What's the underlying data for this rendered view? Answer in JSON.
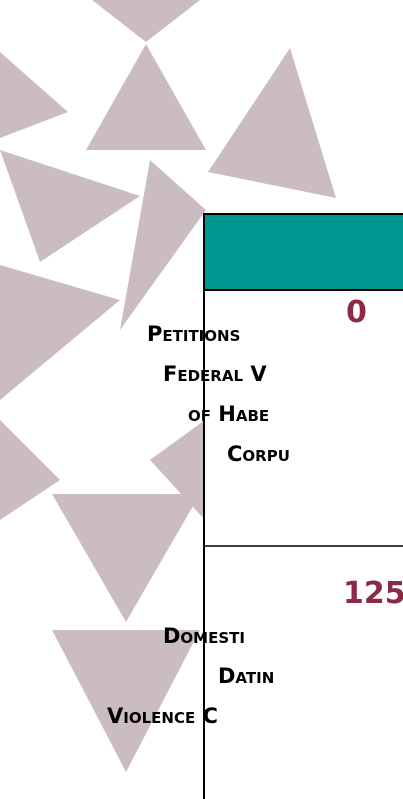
{
  "panel": {
    "items": [
      {
        "number": "0",
        "lines": [
          "Petitions",
          "Federal V",
          "of Habe",
          "Corpu"
        ]
      },
      {
        "number": "125",
        "lines": [
          "Domesti",
          "Datin",
          "Violence C"
        ]
      }
    ]
  }
}
